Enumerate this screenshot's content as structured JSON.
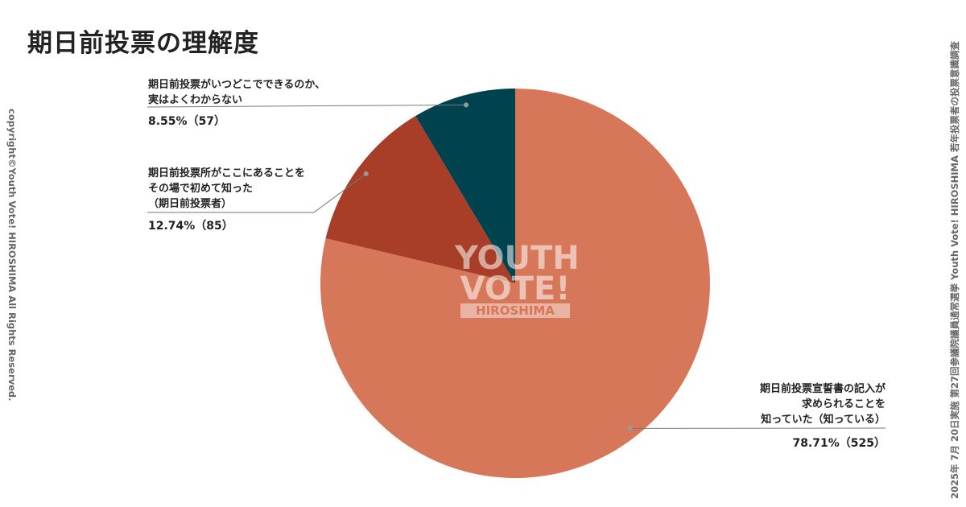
{
  "chart_data": {
    "type": "pie",
    "title": "期日前投票の理解度",
    "categories": [
      "期日前投票宣誓書の記入が\n求められることを\n知っていた（知っている）",
      "期日前投票所がここにあることを\nその場で初めて知った\n（期日前投票者）",
      "期日前投票がいつどこでできるのか、\n実はよくわからない"
    ],
    "values": [
      78.71,
      12.74,
      8.55
    ],
    "value_labels": [
      "78.71%（525）",
      "12.74%（85）",
      "8.55%（57）"
    ],
    "colors": [
      "#d77759",
      "#a83e27",
      "#00434f"
    ],
    "watermark": [
      "YOUTH",
      "VOTE!",
      "HIROSHIMA"
    ],
    "copyright": "copyright©Youth Vote! HIROSHIMA  All Rights Reserved.",
    "source": "2025年 7月 20日実施 第27回参議院議員通常選挙  Youth Vote! HIROSHIMA 若年投票者の投票意識調査"
  }
}
